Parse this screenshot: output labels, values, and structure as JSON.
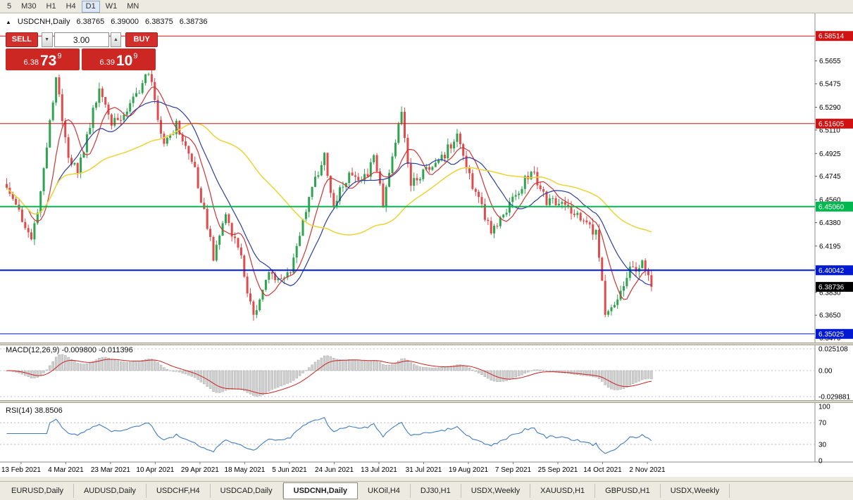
{
  "app": {
    "name": "MetaTrader",
    "background": "#edebe1"
  },
  "toolbar": {
    "timeframes": [
      {
        "label": "5",
        "active": false
      },
      {
        "label": "M30",
        "active": false
      },
      {
        "label": "H1",
        "active": false
      },
      {
        "label": "H4",
        "active": false
      },
      {
        "label": "D1",
        "active": true
      },
      {
        "label": "W1",
        "active": false
      },
      {
        "label": "MN",
        "active": false
      }
    ]
  },
  "header": {
    "arrow": "▲",
    "symbol": "USDCNH,Daily",
    "open": "6.38765",
    "high": "6.39000",
    "low": "6.38375",
    "close": "6.38736"
  },
  "trade_panel": {
    "sell_label": "SELL",
    "buy_label": "BUY",
    "volume": "3.00",
    "volume_down_icon": "▼",
    "volume_up_icon": "▲",
    "sell_price": {
      "prefix": "6.38",
      "big": "73",
      "sup": "9"
    },
    "buy_price": {
      "prefix": "6.39",
      "big": "10",
      "sup": "9"
    }
  },
  "chart_data": {
    "type": "candlestick",
    "symbol": "USDCNH",
    "timeframe": "Daily",
    "title": "USDCNH,Daily",
    "x_labels": [
      "13 Feb 2021",
      "4 Mar 2021",
      "23 Mar 2021",
      "10 Apr 2021",
      "29 Apr 2021",
      "18 May 2021",
      "5 Jun 2021",
      "24 Jun 2021",
      "13 Jul 2021",
      "31 Jul 2021",
      "19 Aug 2021",
      "7 Sep 2021",
      "25 Sep 2021",
      "14 Oct 2021",
      "2 Nov 2021"
    ],
    "y_ticks": [
      "6.5655",
      "6.5475",
      "6.5290",
      "6.5110",
      "6.4925",
      "6.4745",
      "6.4560",
      "6.4380",
      "6.4195",
      "6.4015",
      "6.3830",
      "6.3650",
      "6.3470"
    ],
    "price_range": {
      "min": 6.3435,
      "max": 6.603
    },
    "candle_count": 210,
    "last_close": 6.38736,
    "price_waypoints": [
      [
        0,
        6.468
      ],
      [
        8,
        6.425
      ],
      [
        11,
        6.462
      ],
      [
        16,
        6.552
      ],
      [
        20,
        6.492
      ],
      [
        23,
        6.476
      ],
      [
        30,
        6.545
      ],
      [
        34,
        6.515
      ],
      [
        40,
        6.53
      ],
      [
        46,
        6.557
      ],
      [
        51,
        6.5
      ],
      [
        55,
        6.515
      ],
      [
        61,
        6.48
      ],
      [
        67,
        6.412
      ],
      [
        71,
        6.445
      ],
      [
        76,
        6.41
      ],
      [
        80,
        6.362
      ],
      [
        85,
        6.398
      ],
      [
        90,
        6.392
      ],
      [
        92,
        6.402
      ],
      [
        99,
        6.468
      ],
      [
        103,
        6.49
      ],
      [
        106,
        6.452
      ],
      [
        111,
        6.478
      ],
      [
        115,
        6.468
      ],
      [
        119,
        6.488
      ],
      [
        122,
        6.455
      ],
      [
        128,
        6.527
      ],
      [
        131,
        6.468
      ],
      [
        136,
        6.478
      ],
      [
        141,
        6.488
      ],
      [
        146,
        6.508
      ],
      [
        151,
        6.468
      ],
      [
        157,
        6.432
      ],
      [
        163,
        6.452
      ],
      [
        170,
        6.48
      ],
      [
        175,
        6.455
      ],
      [
        180,
        6.452
      ],
      [
        186,
        6.442
      ],
      [
        191,
        6.43
      ],
      [
        194,
        6.368
      ],
      [
        198,
        6.378
      ],
      [
        202,
        6.4
      ],
      [
        206,
        6.405
      ],
      [
        209,
        6.38736
      ]
    ],
    "levels": [
      {
        "price": 6.58514,
        "label": "6.58514",
        "color": "#d11212",
        "width": 1
      },
      {
        "price": 6.51605,
        "label": "6.51605",
        "color": "#d11212",
        "width": 1
      },
      {
        "price": 6.4506,
        "label": "6.45060",
        "color": "#00b84e",
        "width": 2
      },
      {
        "price": 6.40042,
        "label": "6.40042",
        "color": "#0019d2",
        "width": 2
      },
      {
        "price": 6.35025,
        "label": "6.35025",
        "color": "#0019d2",
        "width": 1
      }
    ],
    "current_price": {
      "value": 6.38736,
      "label": "6.38736",
      "color": "#000000"
    },
    "moving_averages": [
      {
        "period": 8,
        "color": "#cf3434"
      },
      {
        "period": 16,
        "color": "#2c3e9e"
      },
      {
        "period": 50,
        "color": "#ecd53f"
      }
    ],
    "macd": {
      "label": "MACD(12,26,9)",
      "value": "-0.009800",
      "signal_value": "-0.011396",
      "fast": 12,
      "slow": 26,
      "signal": 9,
      "axis": [
        {
          "label": "0.025108",
          "value": 0.025108
        },
        {
          "label": "0.00",
          "value": 0
        },
        {
          "label": "-0.029881",
          "value": -0.029881
        }
      ],
      "hist_color": "#cfcfcf",
      "hist_border": "#a0a0a0",
      "signal_color": "#cc2222"
    },
    "rsi": {
      "label": "RSI(14)",
      "value": "38.8506",
      "period": 14,
      "axis": [
        {
          "label": "100",
          "value": 100
        },
        {
          "label": "70",
          "value": 70
        },
        {
          "label": "30",
          "value": 30
        },
        {
          "label": "0",
          "value": 0
        }
      ],
      "levels": [
        70,
        30
      ],
      "line_color": "#3f7cc0"
    },
    "colors": {
      "bull": "#2fa44f",
      "bear": "#e14b4b"
    }
  },
  "tabs": [
    {
      "label": "EURUSD,Daily",
      "active": false
    },
    {
      "label": "AUDUSD,Daily",
      "active": false
    },
    {
      "label": "USDCHF,H4",
      "active": false
    },
    {
      "label": "USDCAD,Daily",
      "active": false
    },
    {
      "label": "USDCNH,Daily",
      "active": true
    },
    {
      "label": "UKOil,H4",
      "active": false
    },
    {
      "label": "DJ30,H1",
      "active": false
    },
    {
      "label": "USDX,Weekly",
      "active": false
    },
    {
      "label": "XAUUSD,H1",
      "active": false
    },
    {
      "label": "GBPUSD,H1",
      "active": false
    },
    {
      "label": "USDX,Weekly",
      "active": false
    }
  ]
}
